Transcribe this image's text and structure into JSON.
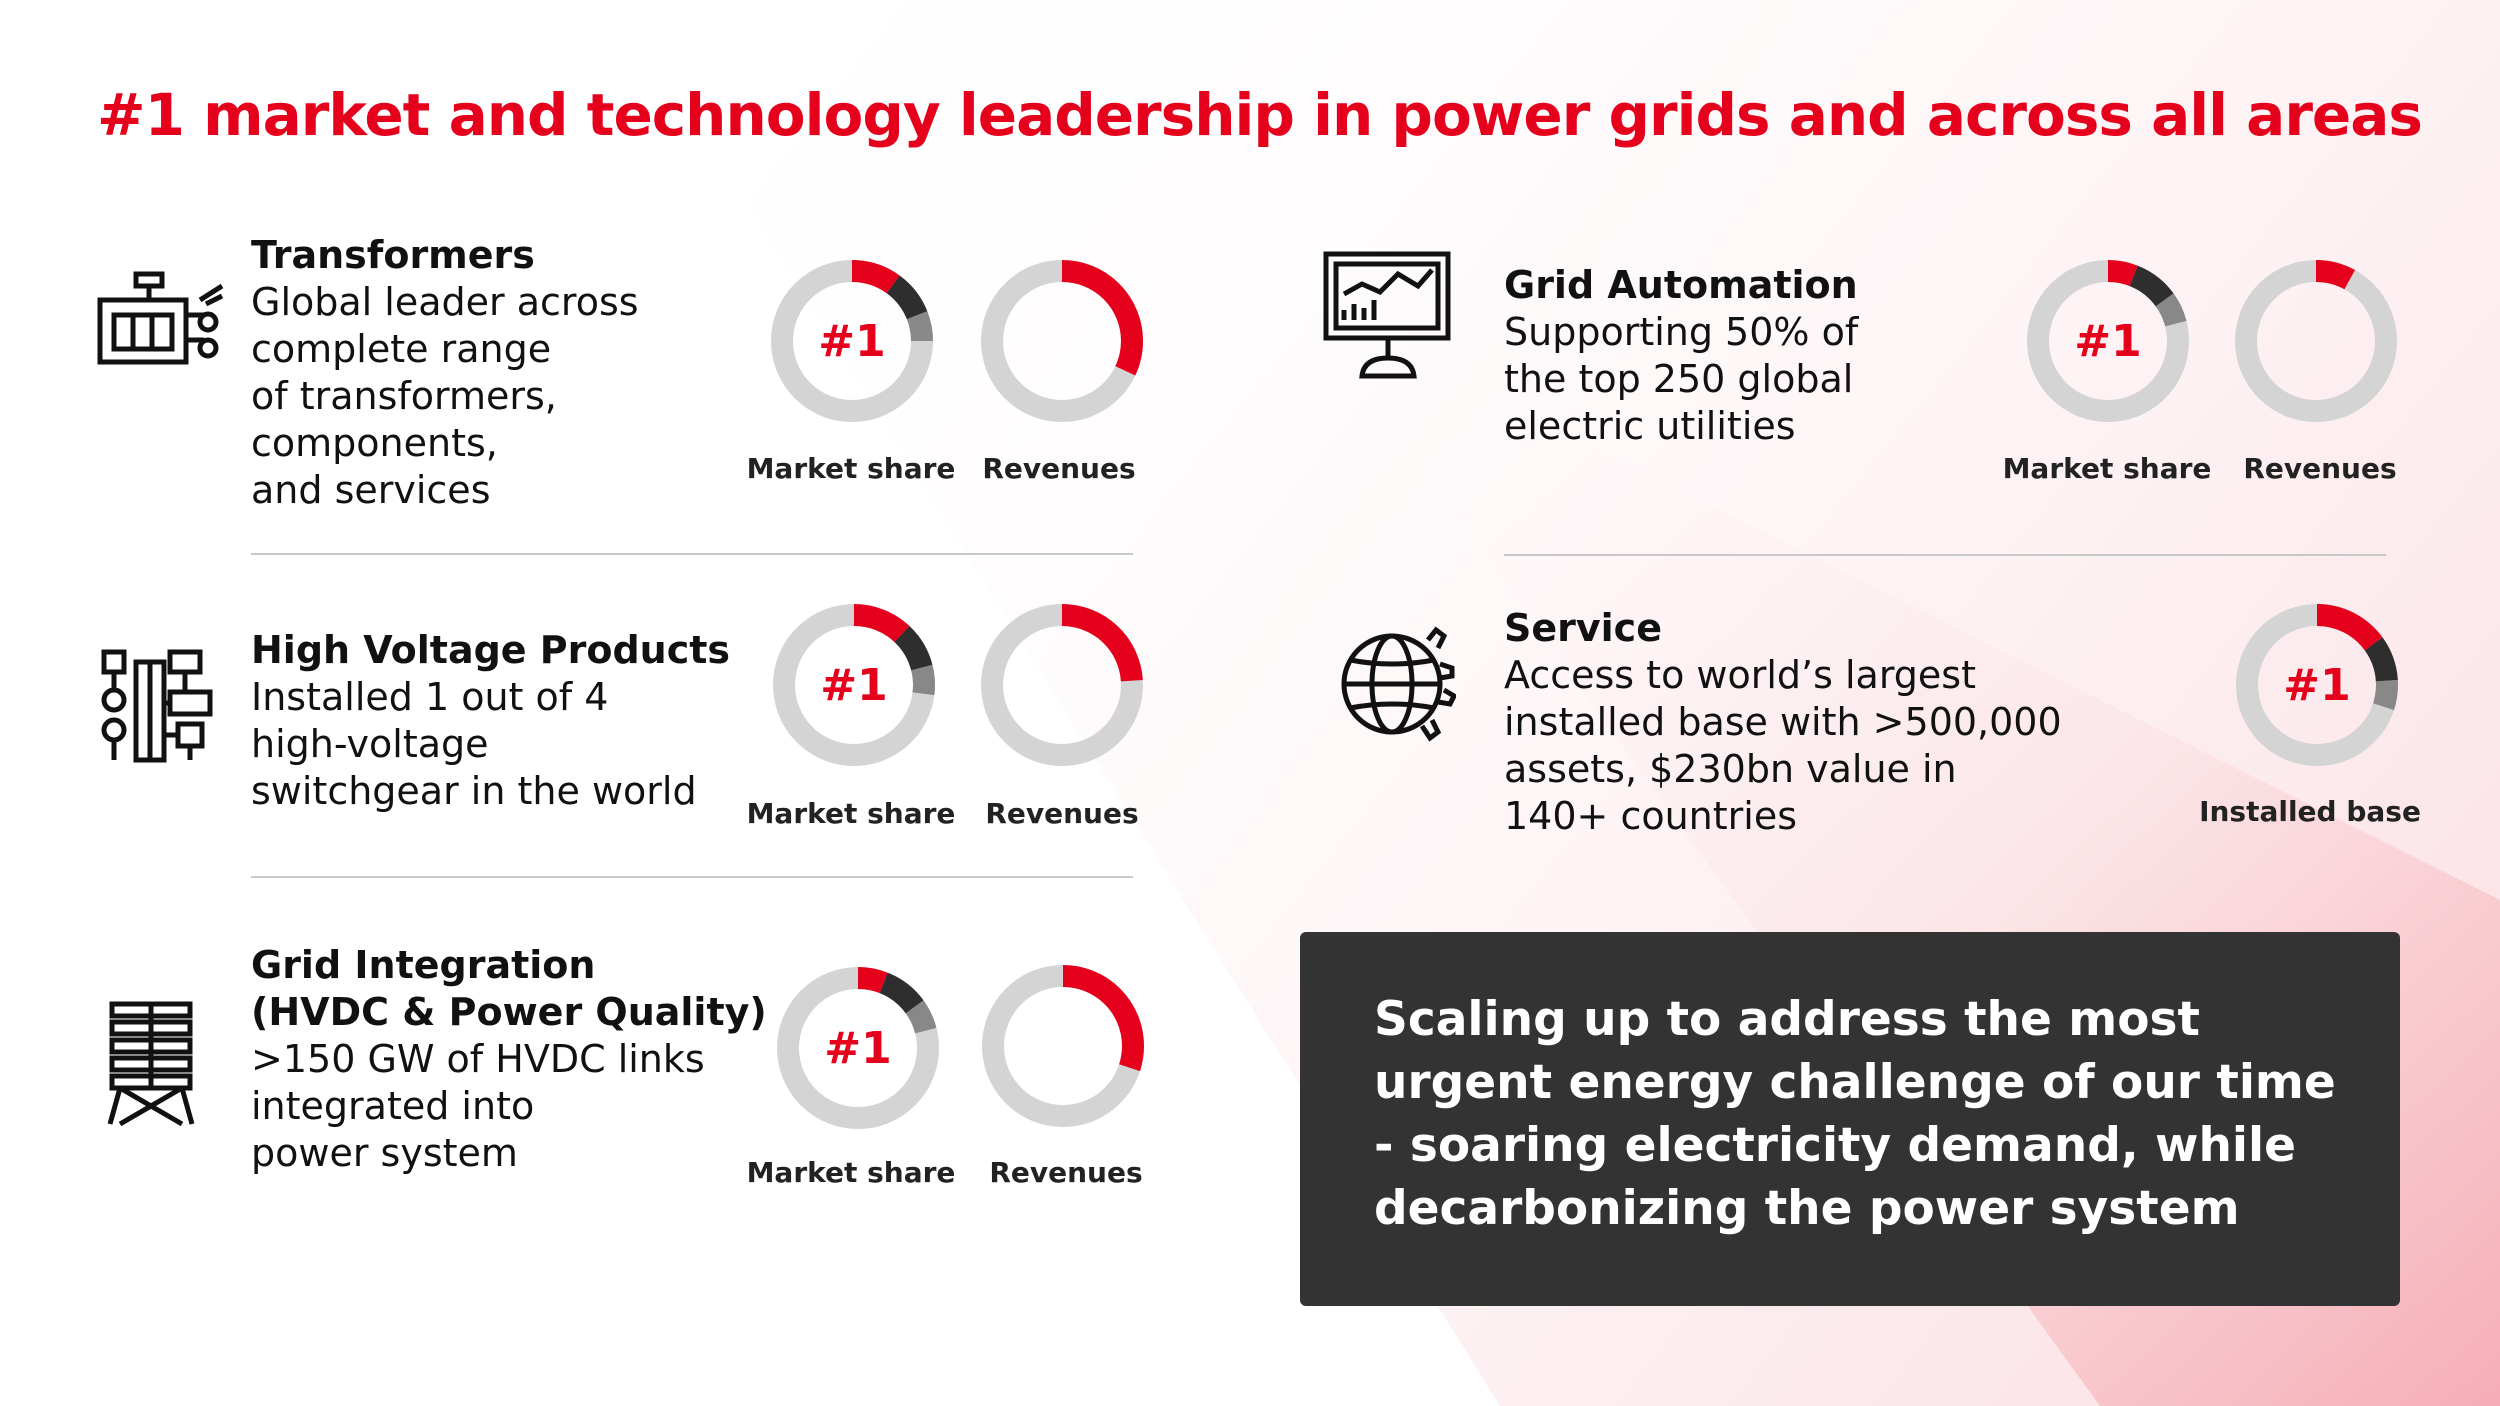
{
  "title": "#1 market and technology leadership in power grids and across all areas",
  "colors": {
    "accent": "#e5001c",
    "ring_gray": "#d4d4d4",
    "ring_dark": "#2e2e2e",
    "ring_mid": "#888888",
    "callout_bg": "#333333"
  },
  "sections": [
    {
      "id": "transformers",
      "icon": "transformer-icon",
      "heading": "Transformers",
      "description": "Global leader across\ncomplete range\nof transformers,\ncomponents,\nand services",
      "charts": [
        {
          "label": "Market share",
          "rank": "#1",
          "share": 0.1
        },
        {
          "label": "Revenues",
          "share": 0.32
        }
      ]
    },
    {
      "id": "high-voltage-products",
      "icon": "switchgear-icon",
      "heading": "High Voltage Products",
      "description": "Installed 1 out of 4\nhigh-voltage\nswitchgear in the world",
      "charts": [
        {
          "label": "Market share",
          "rank": "#1",
          "share": 0.12
        },
        {
          "label": "Revenues",
          "share": 0.24
        }
      ]
    },
    {
      "id": "grid-integration",
      "icon": "hvdc-tower-icon",
      "heading": "Grid Integration\n(HVDC & Power Quality)",
      "description": ">150 GW of HVDC links\nintegrated into\npower system",
      "charts": [
        {
          "label": "Market share",
          "rank": "#1",
          "share": 0.06
        },
        {
          "label": "Revenues",
          "share": 0.3
        }
      ]
    },
    {
      "id": "grid-automation",
      "icon": "monitor-chart-icon",
      "heading": "Grid Automation",
      "description": "Supporting 50% of\nthe top 250 global\nelectric utilities",
      "charts": [
        {
          "label": "Market share",
          "rank": "#1",
          "share": 0.06
        },
        {
          "label": "Revenues",
          "share": 0.08
        }
      ]
    },
    {
      "id": "service",
      "icon": "globe-gear-icon",
      "heading": "Service",
      "description": "Access to world’s largest\ninstalled base with >500,000\nassets, $230bn value in\n140+ countries",
      "charts": [
        {
          "label": "Installed base",
          "rank": "#1",
          "share": 0.15
        }
      ]
    }
  ],
  "callout": "Scaling up to address the most\nurgent energy challenge of our time\n- soaring electricity demand, while\ndecarbonizing the power system"
}
